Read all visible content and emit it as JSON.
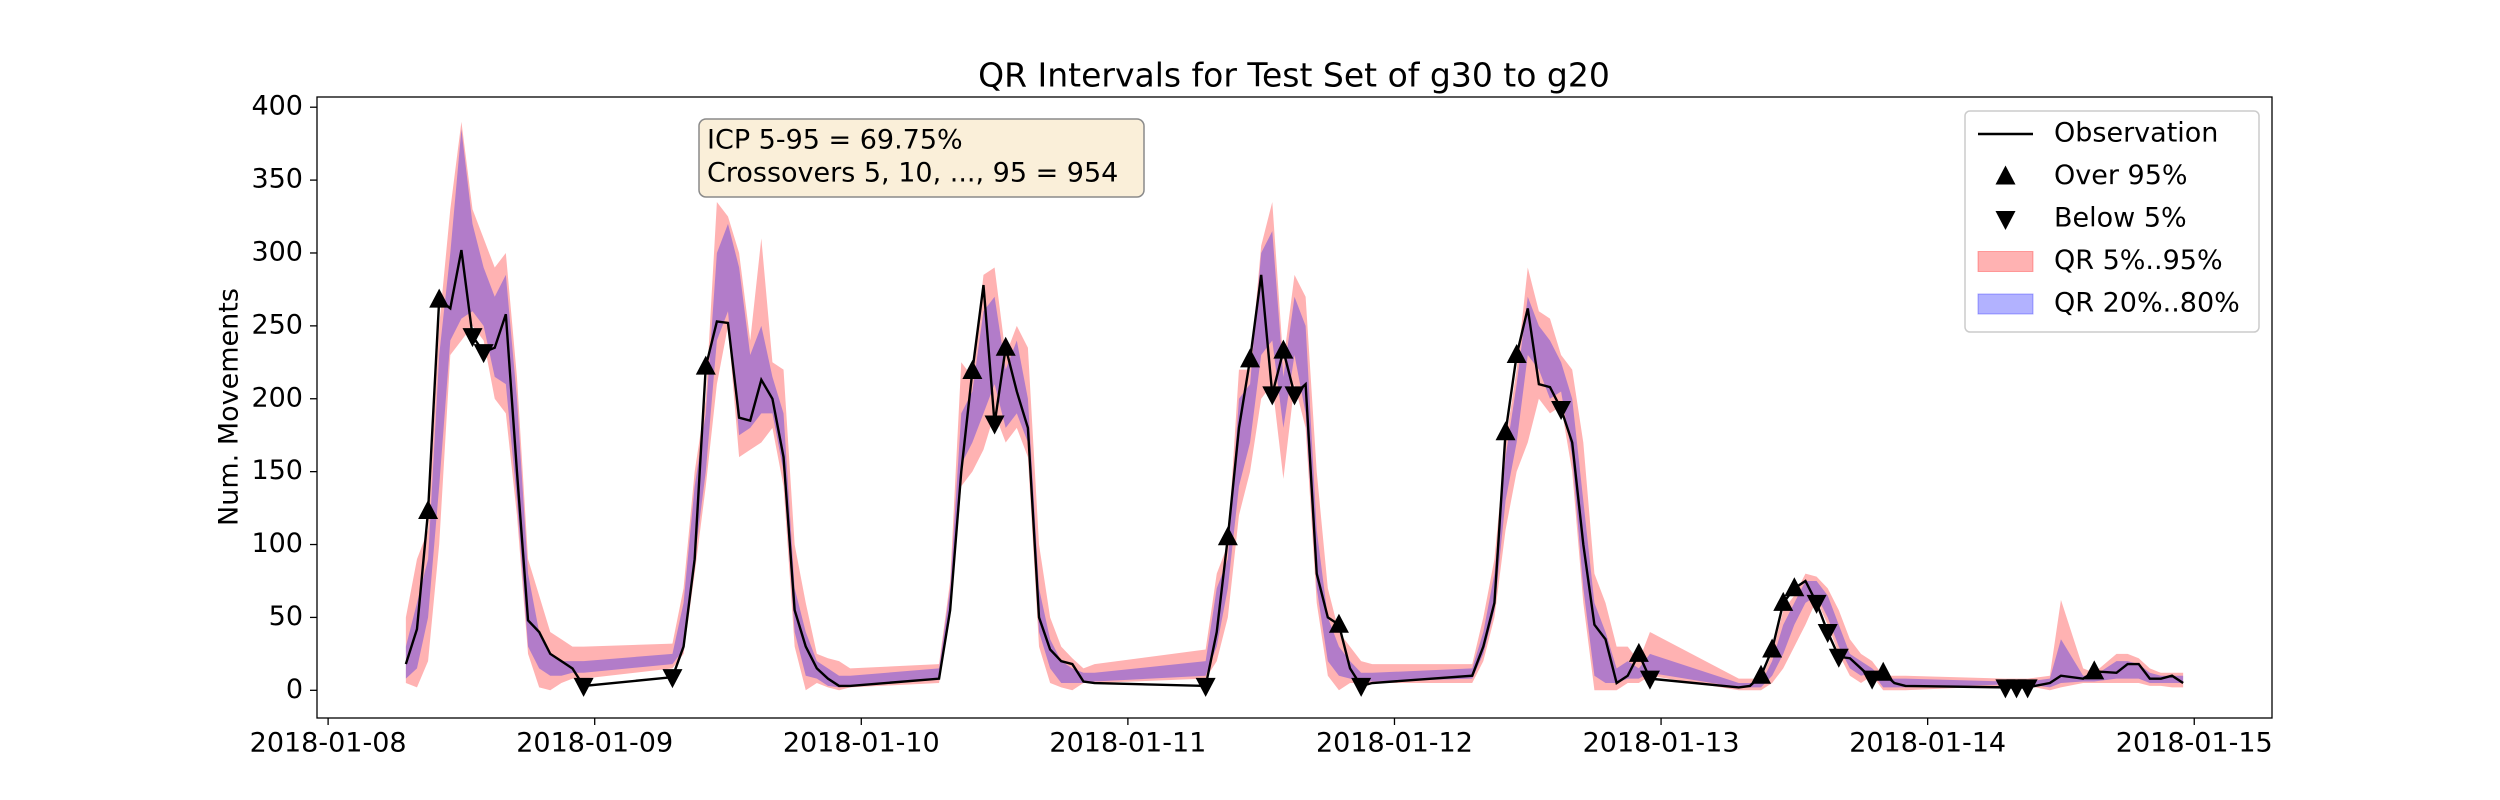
{
  "chart_data": {
    "type": "line",
    "title": "QR Intervals for Test Set of g30 to g20",
    "y_label": "Num. Movements",
    "annotations": [
      "ICP 5-95 = 69.75%",
      "Crossovers 5, 10, ..., 95 = 954"
    ],
    "legend": "upper right",
    "grid": false,
    "xlim": [
      "2018-01-07T23:00",
      "2018-01-15T07:00"
    ],
    "xticks": [
      "2018-01-08",
      "2018-01-09",
      "2018-01-10",
      "2018-01-11",
      "2018-01-12",
      "2018-01-13",
      "2018-01-14",
      "2018-01-15"
    ],
    "ylim": [
      -19,
      407
    ],
    "yticks": [
      0,
      50,
      100,
      150,
      200,
      250,
      300,
      350,
      400
    ],
    "x": [
      "2018-01-08T07:00",
      "2018-01-08T08:00",
      "2018-01-08T09:00",
      "2018-01-08T10:00",
      "2018-01-08T11:00",
      "2018-01-08T12:00",
      "2018-01-08T13:00",
      "2018-01-08T14:00",
      "2018-01-08T15:00",
      "2018-01-08T16:00",
      "2018-01-08T17:00",
      "2018-01-08T18:00",
      "2018-01-08T19:00",
      "2018-01-08T20:00",
      "2018-01-08T21:00",
      "2018-01-08T22:00",
      "2018-01-08T23:00",
      "2018-01-09T07:00",
      "2018-01-09T08:00",
      "2018-01-09T09:00",
      "2018-01-09T10:00",
      "2018-01-09T11:00",
      "2018-01-09T12:00",
      "2018-01-09T13:00",
      "2018-01-09T14:00",
      "2018-01-09T15:00",
      "2018-01-09T16:00",
      "2018-01-09T17:00",
      "2018-01-09T18:00",
      "2018-01-09T19:00",
      "2018-01-09T20:00",
      "2018-01-09T21:00",
      "2018-01-09T22:00",
      "2018-01-09T23:00",
      "2018-01-10T07:00",
      "2018-01-10T08:00",
      "2018-01-10T09:00",
      "2018-01-10T10:00",
      "2018-01-10T11:00",
      "2018-01-10T12:00",
      "2018-01-10T13:00",
      "2018-01-10T14:00",
      "2018-01-10T15:00",
      "2018-01-10T16:00",
      "2018-01-10T17:00",
      "2018-01-10T18:00",
      "2018-01-10T19:00",
      "2018-01-10T20:00",
      "2018-01-10T21:00",
      "2018-01-11T07:00",
      "2018-01-11T08:00",
      "2018-01-11T09:00",
      "2018-01-11T10:00",
      "2018-01-11T11:00",
      "2018-01-11T12:00",
      "2018-01-11T13:00",
      "2018-01-11T14:00",
      "2018-01-11T15:00",
      "2018-01-11T16:00",
      "2018-01-11T17:00",
      "2018-01-11T18:00",
      "2018-01-11T19:00",
      "2018-01-11T20:00",
      "2018-01-11T21:00",
      "2018-01-11T22:00",
      "2018-01-12T07:00",
      "2018-01-12T08:00",
      "2018-01-12T09:00",
      "2018-01-12T10:00",
      "2018-01-12T11:00",
      "2018-01-12T12:00",
      "2018-01-12T13:00",
      "2018-01-12T14:00",
      "2018-01-12T15:00",
      "2018-01-12T16:00",
      "2018-01-12T17:00",
      "2018-01-12T18:00",
      "2018-01-12T19:00",
      "2018-01-12T20:00",
      "2018-01-12T21:00",
      "2018-01-12T22:00",
      "2018-01-12T23:00",
      "2018-01-13T07:00",
      "2018-01-13T08:00",
      "2018-01-13T09:00",
      "2018-01-13T10:00",
      "2018-01-13T11:00",
      "2018-01-13T12:00",
      "2018-01-13T13:00",
      "2018-01-13T14:00",
      "2018-01-13T15:00",
      "2018-01-13T16:00",
      "2018-01-13T17:00",
      "2018-01-13T18:00",
      "2018-01-13T19:00",
      "2018-01-13T20:00",
      "2018-01-13T21:00",
      "2018-01-13T22:00",
      "2018-01-14T07:00",
      "2018-01-14T08:00",
      "2018-01-14T09:00",
      "2018-01-14T11:00",
      "2018-01-14T12:00",
      "2018-01-14T14:00",
      "2018-01-14T15:00",
      "2018-01-14T17:00",
      "2018-01-14T18:00",
      "2018-01-14T19:00",
      "2018-01-14T20:00",
      "2018-01-14T21:00",
      "2018-01-14T22:00",
      "2018-01-14T23:00"
    ],
    "series": [
      {
        "name": "Observation",
        "color": "#000000",
        "values": [
          18,
          42,
          123,
          268,
          262,
          302,
          243,
          232,
          235,
          258,
          150,
          48,
          40,
          25,
          20,
          15,
          3,
          9,
          30,
          90,
          222,
          253,
          252,
          187,
          185,
          213,
          200,
          160,
          55,
          30,
          15,
          8,
          3,
          3,
          8,
          55,
          150,
          219,
          278,
          183,
          235,
          205,
          180,
          50,
          28,
          20,
          18,
          6,
          5,
          3,
          40,
          105,
          180,
          227,
          285,
          203,
          233,
          203,
          210,
          80,
          50,
          45,
          15,
          3,
          5,
          10,
          30,
          60,
          177,
          230,
          262,
          210,
          208,
          193,
          170,
          100,
          45,
          35,
          5,
          10,
          25,
          8,
          2,
          3,
          10,
          28,
          60,
          70,
          75,
          60,
          40,
          23,
          22,
          15,
          8,
          12,
          5,
          3,
          2,
          2,
          2,
          5,
          10,
          8,
          13,
          12,
          18,
          18,
          8,
          8,
          10,
          5
        ]
      },
      {
        "name": "Over 95%",
        "color": "#000000"
      },
      {
        "name": "Below 5%",
        "color": "#000000"
      },
      {
        "name": "QR 5%..95%",
        "color": "#ff0000",
        "lower": [
          5,
          2,
          20,
          100,
          230,
          240,
          250,
          240,
          200,
          190,
          120,
          25,
          2,
          0,
          5,
          8,
          8,
          15,
          25,
          80,
          140,
          210,
          250,
          160,
          165,
          170,
          180,
          140,
          30,
          0,
          5,
          2,
          0,
          2,
          5,
          50,
          140,
          150,
          165,
          190,
          170,
          180,
          160,
          30,
          5,
          2,
          0,
          5,
          5,
          8,
          20,
          50,
          120,
          150,
          200,
          210,
          145,
          210,
          180,
          60,
          10,
          0,
          5,
          5,
          5,
          5,
          20,
          50,
          110,
          150,
          170,
          200,
          190,
          195,
          150,
          60,
          0,
          0,
          0,
          5,
          5,
          10,
          0,
          0,
          0,
          5,
          15,
          30,
          45,
          62,
          45,
          25,
          10,
          5,
          10,
          0,
          0,
          0,
          3,
          3,
          3,
          0,
          2,
          5,
          5,
          5,
          5,
          5,
          3,
          3,
          2,
          2
        ],
        "upper": [
          50,
          90,
          110,
          250,
          330,
          390,
          330,
          310,
          290,
          300,
          215,
          90,
          65,
          40,
          35,
          30,
          30,
          32,
          70,
          150,
          200,
          335,
          325,
          300,
          240,
          310,
          225,
          220,
          100,
          60,
          25,
          22,
          20,
          15,
          18,
          75,
          225,
          215,
          285,
          290,
          230,
          250,
          235,
          100,
          50,
          30,
          22,
          15,
          18,
          28,
          80,
          100,
          220,
          220,
          305,
          335,
          225,
          285,
          270,
          150,
          70,
          40,
          30,
          20,
          18,
          18,
          50,
          90,
          170,
          220,
          290,
          260,
          255,
          230,
          220,
          170,
          80,
          60,
          30,
          30,
          20,
          40,
          8,
          8,
          8,
          25,
          55,
          65,
          80,
          78,
          70,
          55,
          35,
          25,
          20,
          10,
          10,
          10,
          8,
          8,
          8,
          10,
          62,
          15,
          12,
          25,
          25,
          22,
          15,
          12,
          12,
          12
        ]
      },
      {
        "name": "QR 20%..80%",
        "color": "#0000ff",
        "lower": [
          8,
          15,
          50,
          140,
          240,
          255,
          260,
          250,
          215,
          210,
          130,
          30,
          15,
          10,
          10,
          12,
          12,
          18,
          28,
          90,
          150,
          240,
          260,
          175,
          180,
          190,
          190,
          150,
          40,
          10,
          8,
          3,
          2,
          3,
          8,
          55,
          155,
          170,
          190,
          210,
          180,
          190,
          170,
          40,
          15,
          5,
          5,
          5,
          6,
          10,
          30,
          70,
          140,
          170,
          230,
          240,
          180,
          230,
          190,
          70,
          20,
          10,
          8,
          6,
          6,
          8,
          25,
          55,
          130,
          170,
          230,
          220,
          200,
          205,
          160,
          70,
          10,
          5,
          5,
          8,
          8,
          12,
          2,
          2,
          2,
          10,
          25,
          45,
          60,
          65,
          50,
          30,
          15,
          10,
          12,
          2,
          2,
          2,
          4,
          4,
          4,
          2,
          5,
          6,
          6,
          8,
          8,
          8,
          5,
          5,
          5,
          5
        ],
        "upper": [
          30,
          60,
          90,
          230,
          300,
          385,
          320,
          290,
          270,
          285,
          200,
          80,
          40,
          25,
          20,
          20,
          20,
          25,
          60,
          140,
          190,
          300,
          320,
          290,
          230,
          250,
          215,
          190,
          70,
          40,
          20,
          15,
          10,
          10,
          15,
          70,
          190,
          205,
          260,
          270,
          220,
          240,
          200,
          70,
          35,
          20,
          15,
          12,
          12,
          20,
          70,
          90,
          200,
          210,
          300,
          315,
          215,
          270,
          250,
          110,
          50,
          30,
          20,
          12,
          12,
          15,
          40,
          80,
          160,
          210,
          270,
          250,
          240,
          225,
          200,
          130,
          60,
          40,
          15,
          20,
          15,
          25,
          5,
          5,
          5,
          20,
          45,
          60,
          75,
          75,
          65,
          45,
          25,
          20,
          15,
          8,
          8,
          8,
          6,
          6,
          6,
          8,
          35,
          10,
          10,
          20,
          20,
          18,
          12,
          10,
          10,
          10
        ]
      }
    ]
  }
}
